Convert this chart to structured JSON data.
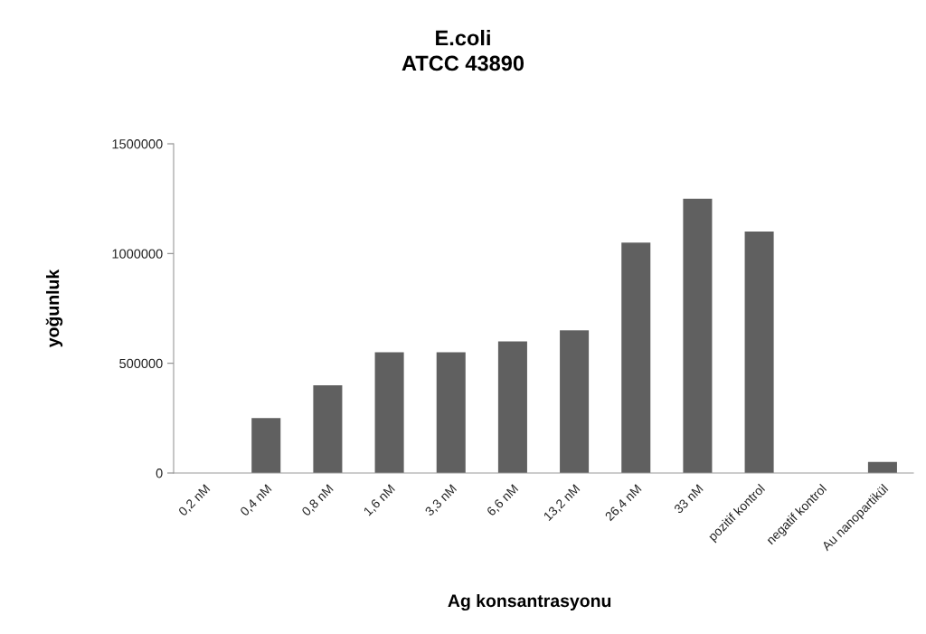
{
  "chart_data": {
    "type": "bar",
    "title": "E.coli\nATCC 43890",
    "xlabel": "Ag konsantrasyonu",
    "ylabel": "yoğunluk",
    "categories": [
      "0,2 nM",
      "0,4 nM",
      "0,8 nM",
      "1,6 nM",
      "3,3 nM",
      "6,6 nM",
      "13,2 nM",
      "26,4 nM",
      "33 nM",
      "pozitif kontrol",
      "negatif kontrol",
      "Au nanopartikül"
    ],
    "values": [
      0,
      250000,
      400000,
      550000,
      550000,
      600000,
      650000,
      1050000,
      1250000,
      1100000,
      0,
      50000
    ],
    "color": "#606060",
    "ylim": [
      0,
      1500000
    ],
    "yticks": [
      0,
      500000,
      1000000,
      1500000
    ]
  }
}
